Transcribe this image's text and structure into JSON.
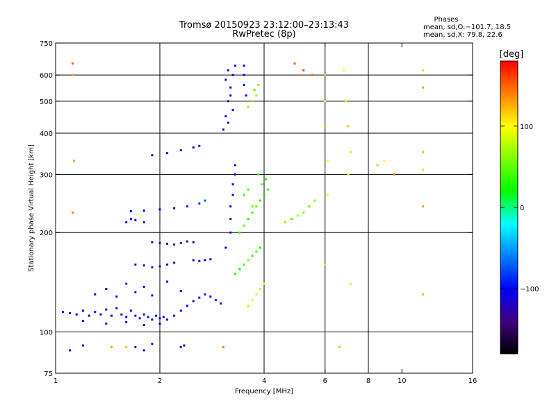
{
  "header": {
    "title": "Tromsø 20150923 23:12:00–23:13:43",
    "subtitle": "RwPretec (8p)",
    "stats_title": "Phases",
    "stats_o": "mean, sd,O:−101.7, 18.5",
    "stats_x": "mean, sd,X:  79.8, 22.6"
  },
  "chart_data": {
    "type": "scatter",
    "xlabel": "Frequency [MHz]",
    "ylabel": "Stationary phase Virtual Height [km]",
    "x_scale": "log",
    "y_scale": "log",
    "xlim": [
      1,
      16
    ],
    "ylim": [
      75,
      750
    ],
    "x_ticks": [
      {
        "v": 1,
        "label": "1"
      },
      {
        "v": 2,
        "label": "2"
      },
      {
        "v": 4,
        "label": "4"
      },
      {
        "v": 6,
        "label": "6"
      },
      {
        "v": 8,
        "label": "8"
      },
      {
        "v": 10,
        "label": "10"
      },
      {
        "v": 16,
        "label": "16"
      }
    ],
    "x_grid": [
      2,
      4,
      6,
      8
    ],
    "y_ticks": [
      {
        "v": 75,
        "label": "75"
      },
      {
        "v": 100,
        "label": "100"
      },
      {
        "v": 200,
        "label": "200"
      },
      {
        "v": 300,
        "label": "300"
      },
      {
        "v": 400,
        "label": "400"
      },
      {
        "v": 500,
        "label": "500"
      },
      {
        "v": 600,
        "label": "600"
      },
      {
        "v": 750,
        "label": "750"
      }
    ],
    "y_grid": [
      100,
      200,
      300,
      400,
      500,
      600
    ],
    "colorbar": {
      "label": "[deg]",
      "range": [
        -180,
        180
      ],
      "ticks": [
        {
          "v": 100,
          "label": "100"
        },
        {
          "v": 0,
          "label": "0"
        },
        {
          "v": -100,
          "label": "−100"
        }
      ],
      "stops": [
        "#ff0000",
        "#ff8000",
        "#ffff00",
        "#80ff00",
        "#00ff00",
        "#00ffff",
        "#0080ff",
        "#0000ff",
        "#400080",
        "#000000"
      ]
    },
    "series": [
      {
        "values": [
          [
            1.05,
            115,
            -110
          ],
          [
            1.1,
            114,
            -105
          ],
          [
            1.15,
            113,
            -110
          ],
          [
            1.2,
            116,
            -100
          ],
          [
            1.25,
            112,
            -110
          ],
          [
            1.3,
            115,
            -105
          ],
          [
            1.35,
            113,
            -100
          ],
          [
            1.4,
            117,
            -110
          ],
          [
            1.45,
            112,
            -105
          ],
          [
            1.5,
            118,
            -100
          ],
          [
            1.55,
            113,
            -110
          ],
          [
            1.6,
            111,
            -105
          ],
          [
            1.65,
            116,
            -100
          ],
          [
            1.7,
            112,
            -110
          ],
          [
            1.75,
            110,
            -110
          ],
          [
            1.8,
            113,
            -105
          ],
          [
            1.85,
            111,
            -100
          ],
          [
            1.9,
            109,
            -110
          ],
          [
            1.95,
            112,
            -105
          ],
          [
            2.0,
            110,
            -100
          ],
          [
            2.05,
            111,
            -110
          ],
          [
            2.1,
            109,
            -105
          ],
          [
            2.2,
            112,
            -110
          ],
          [
            2.3,
            116,
            -100
          ],
          [
            2.4,
            120,
            -105
          ],
          [
            2.5,
            124,
            -110
          ],
          [
            2.6,
            127,
            -100
          ],
          [
            2.7,
            130,
            -95
          ],
          [
            2.8,
            128,
            -100
          ],
          [
            2.9,
            125,
            -90
          ],
          [
            3.0,
            122,
            -95
          ],
          [
            1.3,
            130,
            -100
          ],
          [
            1.4,
            135,
            -105
          ],
          [
            1.5,
            128,
            -100
          ],
          [
            1.6,
            140,
            -95
          ],
          [
            1.7,
            132,
            -100
          ],
          [
            1.8,
            137,
            -95
          ],
          [
            1.9,
            129,
            -100
          ],
          [
            2.1,
            142,
            -110
          ],
          [
            2.3,
            133,
            -95
          ],
          [
            1.9,
            187,
            -130
          ],
          [
            2.0,
            186,
            -130
          ],
          [
            2.1,
            185,
            -135
          ],
          [
            2.2,
            184,
            -130
          ],
          [
            2.3,
            186,
            -135
          ],
          [
            2.4,
            188,
            -130
          ],
          [
            2.5,
            187,
            -140
          ],
          [
            1.7,
            160,
            -130
          ],
          [
            1.8,
            159,
            -135
          ],
          [
            1.9,
            157,
            -130
          ],
          [
            2.0,
            158,
            -135
          ],
          [
            2.1,
            160,
            -130
          ],
          [
            2.2,
            162,
            -140
          ],
          [
            2.5,
            165,
            -110
          ],
          [
            2.6,
            164,
            -110
          ],
          [
            2.7,
            165,
            -105
          ],
          [
            2.8,
            166,
            -110
          ],
          [
            1.65,
            232,
            -100
          ],
          [
            1.8,
            233,
            -100
          ],
          [
            2.0,
            235,
            -105
          ],
          [
            2.2,
            237,
            -100
          ],
          [
            2.4,
            240,
            -95
          ],
          [
            2.6,
            245,
            -80
          ],
          [
            2.7,
            250,
            -70
          ],
          [
            1.6,
            215,
            -110
          ],
          [
            1.65,
            220,
            -105
          ],
          [
            1.7,
            218,
            -100
          ],
          [
            1.8,
            215,
            -110
          ],
          [
            1.9,
            343,
            -110
          ],
          [
            2.1,
            348,
            -105
          ],
          [
            2.3,
            355,
            -110
          ],
          [
            2.5,
            362,
            -100
          ],
          [
            2.6,
            366,
            -105
          ],
          [
            3.05,
            410,
            -110
          ],
          [
            3.1,
            450,
            -105
          ],
          [
            3.15,
            500,
            -110
          ],
          [
            3.2,
            550,
            -100
          ],
          [
            3.25,
            600,
            -110
          ],
          [
            3.3,
            640,
            -105
          ],
          [
            3.15,
            620,
            -100
          ],
          [
            3.1,
            580,
            -110
          ],
          [
            3.2,
            520,
            -105
          ],
          [
            3.25,
            470,
            -100
          ],
          [
            3.15,
            430,
            -110
          ],
          [
            3.5,
            600,
            -110
          ],
          [
            3.5,
            560,
            -105
          ],
          [
            3.55,
            520,
            -110
          ],
          [
            3.6,
            480,
            -100
          ],
          [
            3.5,
            640,
            -105
          ],
          [
            3.1,
            180,
            -110
          ],
          [
            3.2,
            200,
            -120
          ],
          [
            3.2,
            220,
            -130
          ],
          [
            3.2,
            240,
            -110
          ],
          [
            3.25,
            260,
            -105
          ],
          [
            3.25,
            280,
            -110
          ],
          [
            3.3,
            300,
            -100
          ],
          [
            3.3,
            320,
            -120
          ],
          [
            2.3,
            90,
            -110
          ],
          [
            2.35,
            91,
            -110
          ],
          [
            1.7,
            90,
            -110
          ],
          [
            1.8,
            88,
            -110
          ],
          [
            1.9,
            92,
            -105
          ],
          [
            1.1,
            88,
            -110
          ],
          [
            1.2,
            91,
            -105
          ],
          [
            1.2,
            108,
            -110
          ],
          [
            1.4,
            106,
            -105
          ],
          [
            1.6,
            107,
            -100
          ],
          [
            1.8,
            105,
            -110
          ],
          [
            2.0,
            106,
            -105
          ]
        ]
      },
      {
        "values": [
          [
            3.3,
            150,
            30
          ],
          [
            3.4,
            155,
            20
          ],
          [
            3.5,
            160,
            40
          ],
          [
            3.6,
            165,
            50
          ],
          [
            3.7,
            170,
            30
          ],
          [
            3.8,
            175,
            40
          ],
          [
            3.9,
            180,
            20
          ],
          [
            3.4,
            200,
            40
          ],
          [
            3.5,
            210,
            50
          ],
          [
            3.6,
            220,
            30
          ],
          [
            3.7,
            230,
            40
          ],
          [
            3.8,
            240,
            50
          ],
          [
            3.9,
            250,
            30
          ],
          [
            4.0,
            260,
            20
          ],
          [
            4.1,
            270,
            40
          ],
          [
            3.95,
            280,
            50
          ],
          [
            4.05,
            290,
            30
          ],
          [
            3.85,
            300,
            40
          ],
          [
            3.5,
            260,
            30
          ],
          [
            3.6,
            270,
            40
          ],
          [
            3.7,
            240,
            50
          ],
          [
            4.6,
            215,
            60
          ],
          [
            4.8,
            220,
            40
          ],
          [
            5.0,
            225,
            70
          ],
          [
            5.2,
            230,
            60
          ],
          [
            5.4,
            240,
            50
          ],
          [
            5.6,
            250,
            60
          ],
          [
            3.6,
            120,
            80
          ],
          [
            3.7,
            125,
            100
          ],
          [
            3.8,
            130,
            90
          ],
          [
            3.9,
            135,
            110
          ],
          [
            4.0,
            140,
            100
          ],
          [
            3.7,
            500,
            60
          ],
          [
            3.8,
            520,
            70
          ],
          [
            3.6,
            480,
            80
          ],
          [
            3.75,
            540,
            50
          ],
          [
            3.85,
            560,
            60
          ],
          [
            1.12,
            650,
            150
          ],
          [
            1.12,
            600,
            130
          ],
          [
            1.13,
            330,
            130
          ],
          [
            1.12,
            230,
            140
          ],
          [
            4.9,
            650,
            150
          ],
          [
            5.2,
            620,
            160
          ],
          [
            5.5,
            600,
            150
          ],
          [
            6.0,
            600,
            120
          ],
          [
            6.0,
            500,
            110
          ],
          [
            6.0,
            420,
            120
          ],
          [
            6.1,
            330,
            100
          ],
          [
            6.1,
            260,
            100
          ],
          [
            6.0,
            160,
            110
          ],
          [
            6.8,
            620,
            100
          ],
          [
            6.9,
            500,
            110
          ],
          [
            7.0,
            420,
            120
          ],
          [
            7.1,
            350,
            110
          ],
          [
            7.0,
            300,
            100
          ],
          [
            8.5,
            320,
            120
          ],
          [
            8.9,
            330,
            100
          ],
          [
            9.5,
            300,
            140
          ],
          [
            11.5,
            620,
            110
          ],
          [
            11.5,
            550,
            130
          ],
          [
            11.5,
            350,
            120
          ],
          [
            11.5,
            310,
            110
          ],
          [
            11.5,
            240,
            130
          ],
          [
            11.5,
            130,
            120
          ],
          [
            1.45,
            90,
            130
          ],
          [
            1.6,
            90,
            120
          ],
          [
            3.05,
            90,
            140
          ],
          [
            6.6,
            90,
            120
          ],
          [
            7.1,
            140,
            110
          ]
        ]
      }
    ]
  }
}
